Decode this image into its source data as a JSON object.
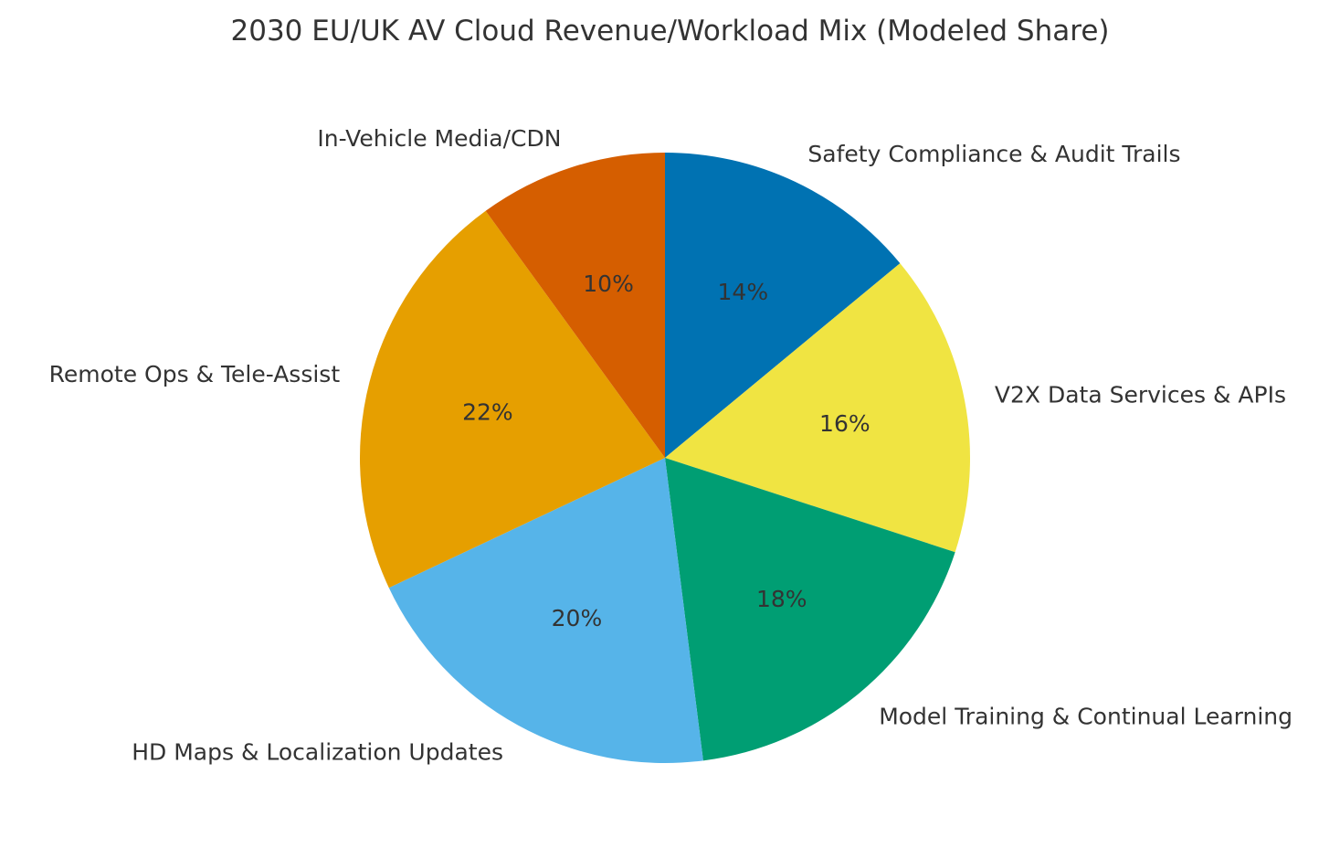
{
  "chart_data": {
    "type": "pie",
    "title": "2030 EU/UK AV Cloud Revenue/Workload Mix (Modeled Share)",
    "unit": "%",
    "start_angle_deg": 90,
    "direction": "clockwise",
    "slices": [
      {
        "label": "Safety Compliance & Audit Trails",
        "value": 14,
        "pct_label": "14%",
        "color": "#0072B2"
      },
      {
        "label": "V2X Data Services & APIs",
        "value": 16,
        "pct_label": "16%",
        "color": "#F0E442"
      },
      {
        "label": "Model Training & Continual Learning",
        "value": 18,
        "pct_label": "18%",
        "color": "#009E73"
      },
      {
        "label": "HD Maps & Localization Updates",
        "value": 20,
        "pct_label": "20%",
        "color": "#56B4E9"
      },
      {
        "label": "Remote Ops & Tele-Assist",
        "value": 22,
        "pct_label": "22%",
        "color": "#E69F00"
      },
      {
        "label": "In-Vehicle Media/CDN",
        "value": 10,
        "pct_label": "10%",
        "color": "#D55E00"
      }
    ]
  }
}
